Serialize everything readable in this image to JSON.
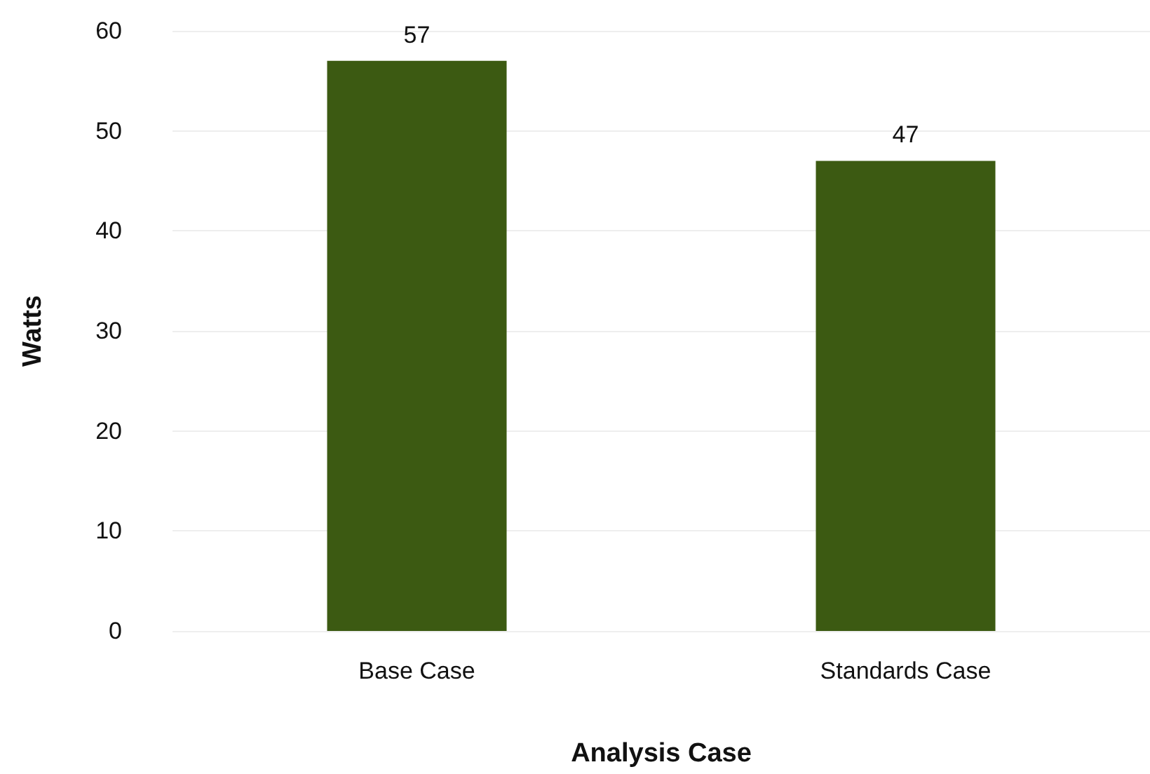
{
  "chart_data": {
    "type": "bar",
    "xlabel": "Analysis Case",
    "ylabel": "Watts",
    "categories": [
      "Base Case",
      "Standards Case"
    ],
    "values": [
      57,
      47
    ],
    "color": "#3c5a12",
    "ylim": [
      0,
      60
    ],
    "yticks": [
      0,
      10,
      20,
      30,
      40,
      50,
      60
    ],
    "grid": "y",
    "data_labels": true
  }
}
